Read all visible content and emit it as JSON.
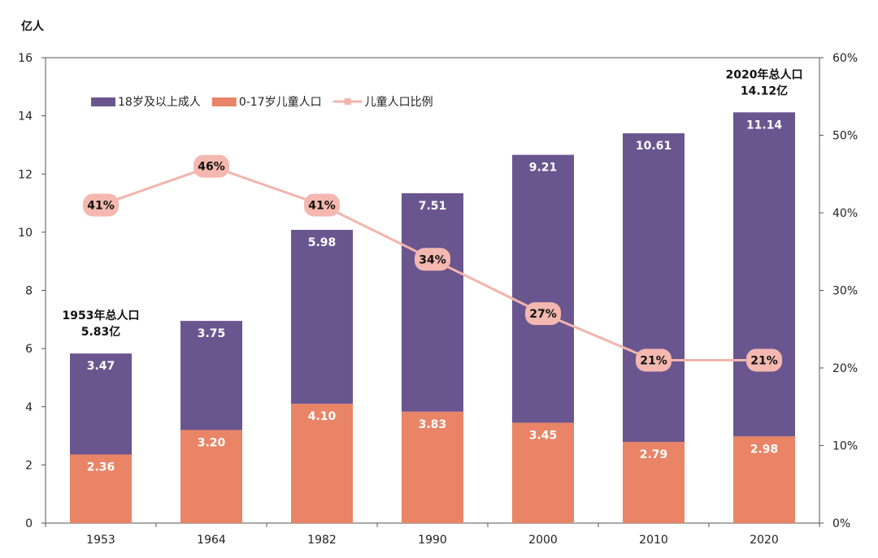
{
  "chart_data": {
    "type": "bar",
    "stacked": true,
    "y_unit_label": "亿人",
    "categories": [
      "1953",
      "1964",
      "1982",
      "1990",
      "2000",
      "2010",
      "2020"
    ],
    "series": [
      {
        "name": "0-17岁儿童人口",
        "axis": "left",
        "type": "bar",
        "color": "#e98466",
        "values": [
          2.36,
          3.2,
          4.1,
          3.83,
          3.45,
          2.79,
          2.98
        ]
      },
      {
        "name": "18岁及以上成人",
        "axis": "left",
        "type": "bar",
        "color": "#6a568f",
        "values": [
          3.47,
          3.75,
          5.98,
          7.51,
          9.21,
          10.61,
          11.14
        ]
      },
      {
        "name": "儿童人口比例",
        "axis": "right",
        "type": "line",
        "color": "#f2b4ac",
        "values": [
          41,
          46,
          41,
          34,
          27,
          21,
          21
        ],
        "labels": [
          "41%",
          "46%",
          "41%",
          "34%",
          "27%",
          "21%",
          "21%"
        ]
      }
    ],
    "legend_order": [
      "18岁及以上成人",
      "0-17岁儿童人口",
      "儿童人口比例"
    ],
    "legend_position": "top-left",
    "y_left": {
      "min": 0,
      "max": 16,
      "ticks": [
        "0",
        "2",
        "4",
        "6",
        "8",
        "10",
        "12",
        "14",
        "16"
      ]
    },
    "y_right": {
      "min": 0,
      "max": 60,
      "ticks": [
        "0%",
        "10%",
        "20%",
        "30%",
        "40%",
        "50%",
        "60%"
      ]
    },
    "annotations": [
      {
        "category": "1953",
        "lines": [
          "1953年总人口",
          "5.83亿"
        ]
      },
      {
        "category": "2020",
        "lines": [
          "2020年总人口",
          "14.12亿"
        ]
      }
    ],
    "grid": false
  }
}
